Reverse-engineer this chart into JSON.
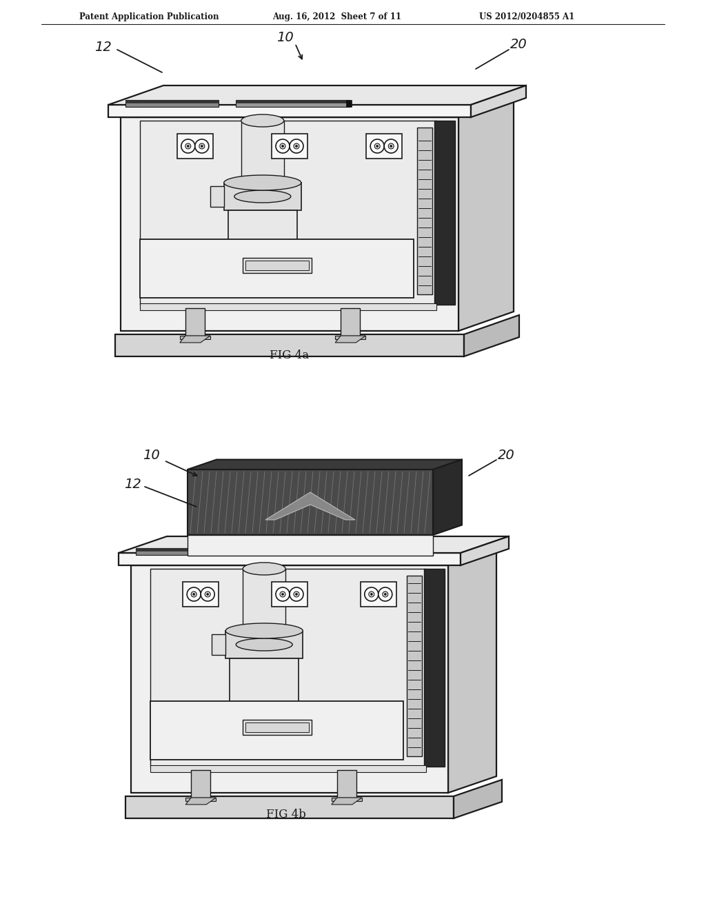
{
  "header_left": "Patent Application Publication",
  "header_mid": "Aug. 16, 2012  Sheet 7 of 11",
  "header_right": "US 2012/0204855 A1",
  "fig4a_label": "FIG 4a",
  "fig4b_label": "FIG 4b",
  "bg_color": "#ffffff",
  "lc": "#1a1a1a",
  "gray_light": "#f0f0f0",
  "gray_mid": "#d8d8d8",
  "gray_dark": "#aaaaaa",
  "gray_very_dark": "#555555",
  "gray_black": "#222222",
  "interior_bg": "#e8e8e8",
  "side_face": "#c8c8c8",
  "top_face": "#e0e0e0"
}
